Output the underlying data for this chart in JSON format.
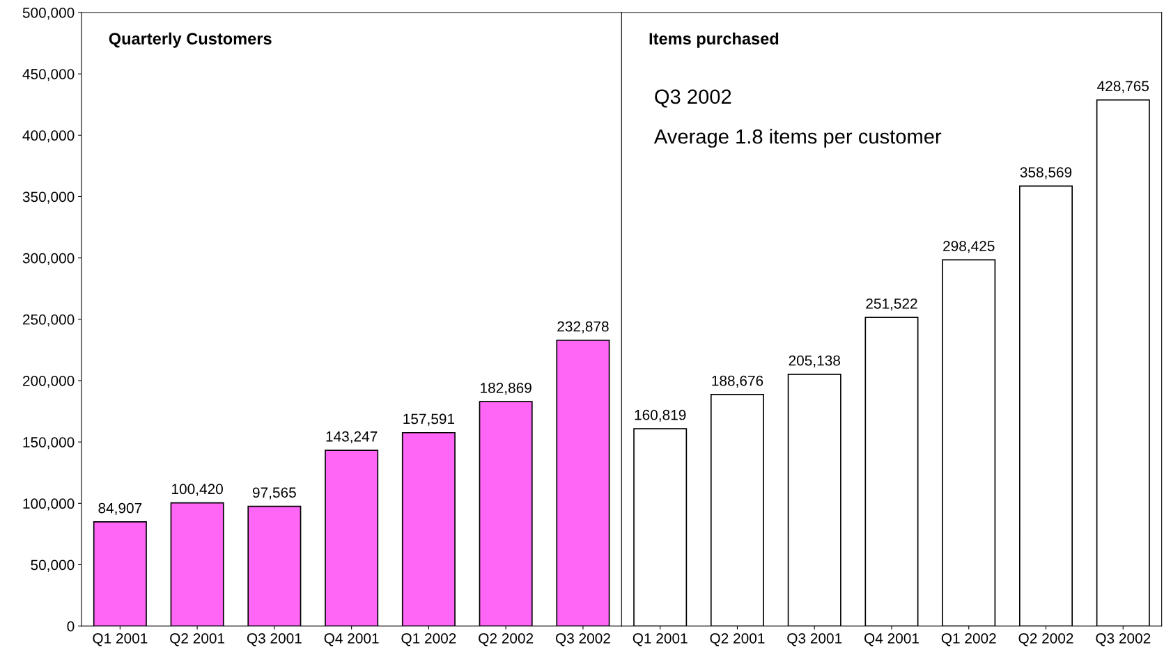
{
  "chart_data": [
    {
      "type": "bar",
      "title": "Quarterly Customers",
      "categories": [
        "Q1 2001",
        "Q2 2001",
        "Q3 2001",
        "Q4 2001",
        "Q1 2002",
        "Q2 2002",
        "Q3 2002"
      ],
      "values": [
        84907,
        100420,
        97565,
        143247,
        157591,
        182869,
        232878
      ],
      "color": "#ff66f5",
      "value_labels": [
        "84,907",
        "100,420",
        "97,565",
        "143,247",
        "157,591",
        "182,869",
        "232,878"
      ],
      "ylim": [
        0,
        500000
      ],
      "yticks": [
        {
          "value": 0,
          "label": "0"
        },
        {
          "value": 50000,
          "label": "50,000"
        },
        {
          "value": 100000,
          "label": "100,000"
        },
        {
          "value": 150000,
          "label": "150,000"
        },
        {
          "value": 200000,
          "label": "200,000"
        },
        {
          "value": 250000,
          "label": "250,000"
        },
        {
          "value": 300000,
          "label": "300,000"
        },
        {
          "value": 350000,
          "label": "350,000"
        },
        {
          "value": 400000,
          "label": "400,000"
        },
        {
          "value": 450000,
          "label": "450,000"
        },
        {
          "value": 500000,
          "label": "500,000"
        }
      ]
    },
    {
      "type": "bar",
      "title": "Items purchased",
      "categories": [
        "Q1 2001",
        "Q2 2001",
        "Q3 2001",
        "Q4 2001",
        "Q1 2002",
        "Q2 2002",
        "Q3 2002"
      ],
      "values": [
        160819,
        188676,
        205138,
        251522,
        298425,
        358569,
        428765
      ],
      "color": "#ffffff",
      "value_labels": [
        "160,819",
        "188,676",
        "205,138",
        "251,522",
        "298,425",
        "358,569",
        "428,765"
      ],
      "ylim": [
        0,
        500000
      ],
      "tick_labels": "x",
      "annotations": [
        "Q3 2002",
        "Average 1.8 items per customer"
      ]
    }
  ]
}
